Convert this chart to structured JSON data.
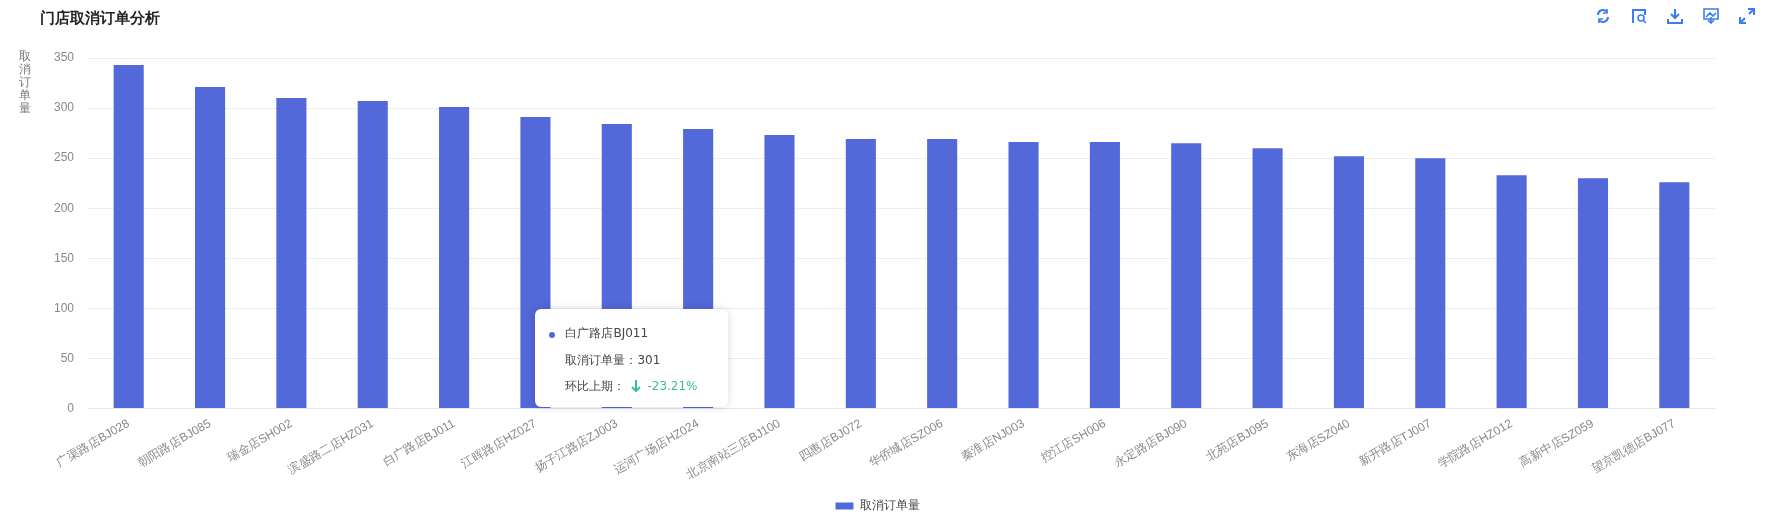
{
  "chart_data": {
    "type": "bar",
    "title": "门店取消订单分析",
    "ylabel": "取消订单量",
    "categories": [
      "广渠路店BJ028",
      "朝阳路店BJ085",
      "瑞金店SH002",
      "滨盛路二店HZ031",
      "白广路店BJ011",
      "江晖路店HZ027",
      "扬子江路店ZJ003",
      "运河广场店HZ024",
      "北京南站三店BJ100",
      "四惠店BJ072",
      "华侨城店SZ006",
      "秦淮店NJ003",
      "控江店SH006",
      "永定路店BJ090",
      "北苑店BJ095",
      "东海店SZ040",
      "新开路店TJ007",
      "学院路店HZ012",
      "高新中店SZ059",
      "望京凯德店BJ077"
    ],
    "series": [
      {
        "name": "取消订单量",
        "color": "#5368d9",
        "values": [
          343,
          321,
          310,
          307,
          301,
          291,
          284,
          279,
          273,
          269,
          269,
          266,
          266,
          265,
          260,
          252,
          250,
          233,
          230,
          226
        ]
      }
    ],
    "ylim": [
      0,
      350
    ],
    "yticks": [
      0,
      50,
      100,
      150,
      200,
      250,
      300,
      350
    ],
    "grid": "y",
    "legend": "bottom",
    "annotations": [
      "白广路店BJ011",
      "取消订单量：301",
      "环比上期：",
      "-23.21%"
    ]
  }
}
